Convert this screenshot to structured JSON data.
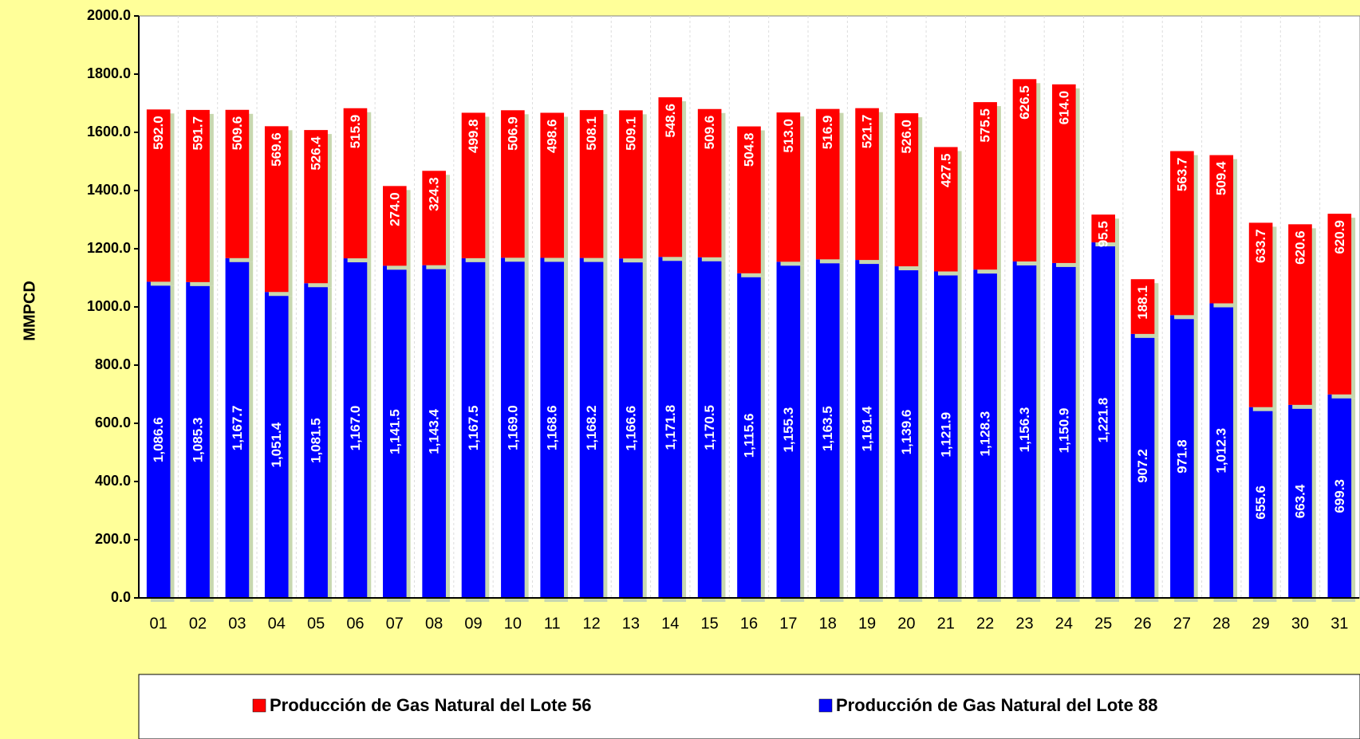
{
  "chart_data": {
    "type": "stacked-bar",
    "y_label": "MMPCD",
    "categories": [
      "01",
      "02",
      "03",
      "04",
      "05",
      "06",
      "07",
      "08",
      "09",
      "10",
      "11",
      "12",
      "13",
      "14",
      "15",
      "16",
      "17",
      "18",
      "19",
      "20",
      "21",
      "22",
      "23",
      "24",
      "25",
      "26",
      "27",
      "28",
      "29",
      "30",
      "31"
    ],
    "series": [
      {
        "name": "Producción de Gas Natural del Lote 56",
        "color": "#FF0000",
        "values": [
          592.0,
          591.7,
          509.6,
          569.6,
          526.4,
          515.9,
          274.0,
          324.3,
          499.8,
          506.9,
          498.6,
          508.1,
          509.1,
          548.6,
          509.6,
          504.8,
          513.0,
          516.9,
          521.7,
          526.0,
          427.5,
          575.5,
          626.5,
          614.0,
          95.5,
          188.1,
          563.7,
          509.4,
          633.7,
          620.6,
          620.9
        ],
        "value_labels": [
          "592.0",
          "591.7",
          "509.6",
          "569.6",
          "526.4",
          "515.9",
          "274.0",
          "324.3",
          "499.8",
          "506.9",
          "498.6",
          "508.1",
          "509.1",
          "548.6",
          "509.6",
          "504.8",
          "513.0",
          "516.9",
          "521.7",
          "526.0",
          "427.5",
          "575.5",
          "626.5",
          "614.0",
          "95.5",
          "188.1",
          "563.7",
          "509.4",
          "633.7",
          "620.6",
          "620.9"
        ]
      },
      {
        "name": "Producción de Gas Natural del Lote 88",
        "color": "#0000FF",
        "values": [
          1086.6,
          1085.3,
          1167.7,
          1051.4,
          1081.5,
          1167.0,
          1141.5,
          1143.4,
          1167.5,
          1169.0,
          1168.6,
          1168.2,
          1166.6,
          1171.8,
          1170.5,
          1115.6,
          1155.3,
          1163.5,
          1161.4,
          1139.6,
          1121.9,
          1128.3,
          1156.3,
          1150.9,
          1221.8,
          907.2,
          971.8,
          1012.3,
          655.6,
          663.4,
          699.3
        ],
        "value_labels": [
          "1,086.6",
          "1,085.3",
          "1,167.7",
          "1,051.4",
          "1,081.5",
          "1,167.0",
          "1,141.5",
          "1,143.4",
          "1,167.5",
          "1,169.0",
          "1,168.6",
          "1,168.2",
          "1,166.6",
          "1,171.8",
          "1,170.5",
          "1,115.6",
          "1,155.3",
          "1,163.5",
          "1,161.4",
          "1,139.6",
          "1,121.9",
          "1,128.3",
          "1,156.3",
          "1,150.9",
          "1,221.8",
          "907.2",
          "971.8",
          "1,012.3",
          "655.6",
          "663.4",
          "699.3"
        ]
      }
    ],
    "ylim": [
      0,
      2000
    ],
    "yticks": [
      {
        "value": 0,
        "label": "0.0"
      },
      {
        "value": 200,
        "label": "200.0"
      },
      {
        "value": 400,
        "label": "400.0"
      },
      {
        "value": 600,
        "label": "600.0"
      },
      {
        "value": 800,
        "label": "800.0"
      },
      {
        "value": 1000,
        "label": "1000.0"
      },
      {
        "value": 1200,
        "label": "1200.0"
      },
      {
        "value": 1400,
        "label": "1400.0"
      },
      {
        "value": 1600,
        "label": "1600.0"
      },
      {
        "value": 1800,
        "label": "1800.0"
      },
      {
        "value": 2000,
        "label": "2000.0"
      }
    ],
    "legend": "bottom"
  }
}
